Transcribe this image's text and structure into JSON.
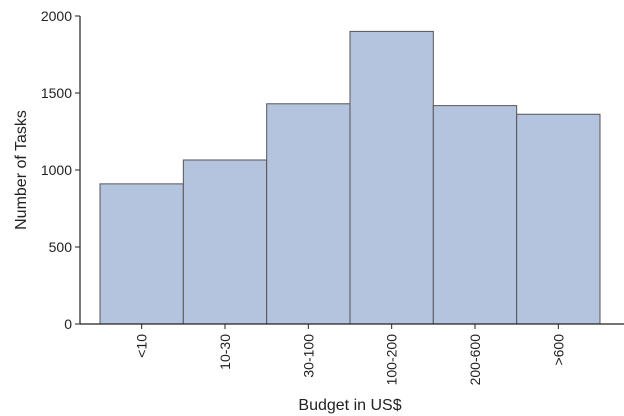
{
  "chart_data": {
    "type": "bar",
    "categories": [
      "<10",
      "10-30",
      "30-100",
      "100-200",
      "200-600",
      ">600"
    ],
    "values": [
      910,
      1065,
      1430,
      1900,
      1418,
      1362
    ],
    "xlabel": "Budget in US$",
    "ylabel": "Number of Tasks",
    "ylim": [
      0,
      2000
    ],
    "yticks": [
      0,
      500,
      1000,
      1500,
      2000
    ],
    "grid": false,
    "legend": "none",
    "bar_color": "#b4c4de",
    "bar_edge_color": "#555555"
  }
}
